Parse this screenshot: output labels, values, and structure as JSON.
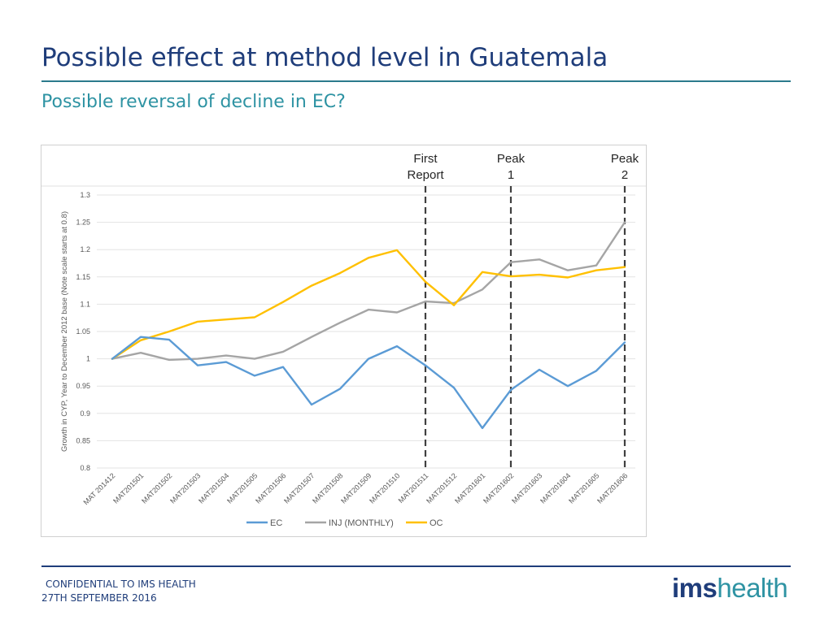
{
  "header": {
    "title": "Possible effect at method level in Guatemala",
    "subtitle": "Possible reversal of decline in EC?"
  },
  "footer": {
    "line1": "CONFIDENTIAL TO IMS HEALTH",
    "line2": "27TH SEPTEMBER 2016",
    "logo_ims": "ims",
    "logo_health": "health"
  },
  "chart_data": {
    "type": "line",
    "title": "",
    "xlabel": "",
    "ylabel": "Growth in CYP, Year to December 2012 base (Note scale starts at 0.8)",
    "ylim": [
      0.8,
      1.3
    ],
    "yticks": [
      {
        "value": 0.8,
        "label": "0.8"
      },
      {
        "value": 0.85,
        "label": "0.85"
      },
      {
        "value": 0.9,
        "label": "0.9"
      },
      {
        "value": 0.95,
        "label": "0.95"
      },
      {
        "value": 1.0,
        "label": "1"
      },
      {
        "value": 1.05,
        "label": "1.05"
      },
      {
        "value": 1.1,
        "label": "1.1"
      },
      {
        "value": 1.15,
        "label": "1.15"
      },
      {
        "value": 1.2,
        "label": "1.2"
      },
      {
        "value": 1.25,
        "label": "1.25"
      },
      {
        "value": 1.3,
        "label": "1.3"
      }
    ],
    "grid": true,
    "legend_position": "bottom",
    "categories": [
      "MAT 201412",
      "MAT201501",
      "MAT201502",
      "MAT201503",
      "MAT201504",
      "MAT201505",
      "MAT201506",
      "MAT201507",
      "MAT201508",
      "MAT201509",
      "MAT201510",
      "MAT201511",
      "MAT201512",
      "MAT201601",
      "MAT201602",
      "MAT201603",
      "MAT201604",
      "MAT201605",
      "MAT201606"
    ],
    "series": [
      {
        "name": "EC",
        "color": "#5b9bd5",
        "values": [
          1.0,
          1.04,
          1.035,
          0.988,
          0.994,
          0.969,
          0.985,
          0.916,
          0.945,
          1.0,
          1.023,
          0.988,
          0.947,
          0.873,
          0.943,
          0.98,
          0.95,
          0.978,
          1.03
        ]
      },
      {
        "name": "INJ (MONTHLY)",
        "color": "#a5a5a5",
        "values": [
          1.0,
          1.011,
          0.998,
          1.0,
          1.006,
          1.0,
          1.013,
          1.04,
          1.066,
          1.09,
          1.085,
          1.105,
          1.102,
          1.127,
          1.177,
          1.182,
          1.162,
          1.171,
          1.25
        ]
      },
      {
        "name": "OC",
        "color": "#ffc000",
        "values": [
          1.0,
          1.034,
          1.05,
          1.068,
          1.072,
          1.076,
          1.104,
          1.134,
          1.157,
          1.185,
          1.199,
          1.141,
          1.098,
          1.159,
          1.151,
          1.154,
          1.149,
          1.162,
          1.168
        ]
      }
    ],
    "annotations": [
      {
        "category_index": 11,
        "lines": [
          "First",
          "Report"
        ]
      },
      {
        "category_index": 14,
        "lines": [
          "Peak",
          "1"
        ]
      },
      {
        "category_index": 18,
        "lines": [
          "Peak",
          "2"
        ]
      }
    ]
  }
}
